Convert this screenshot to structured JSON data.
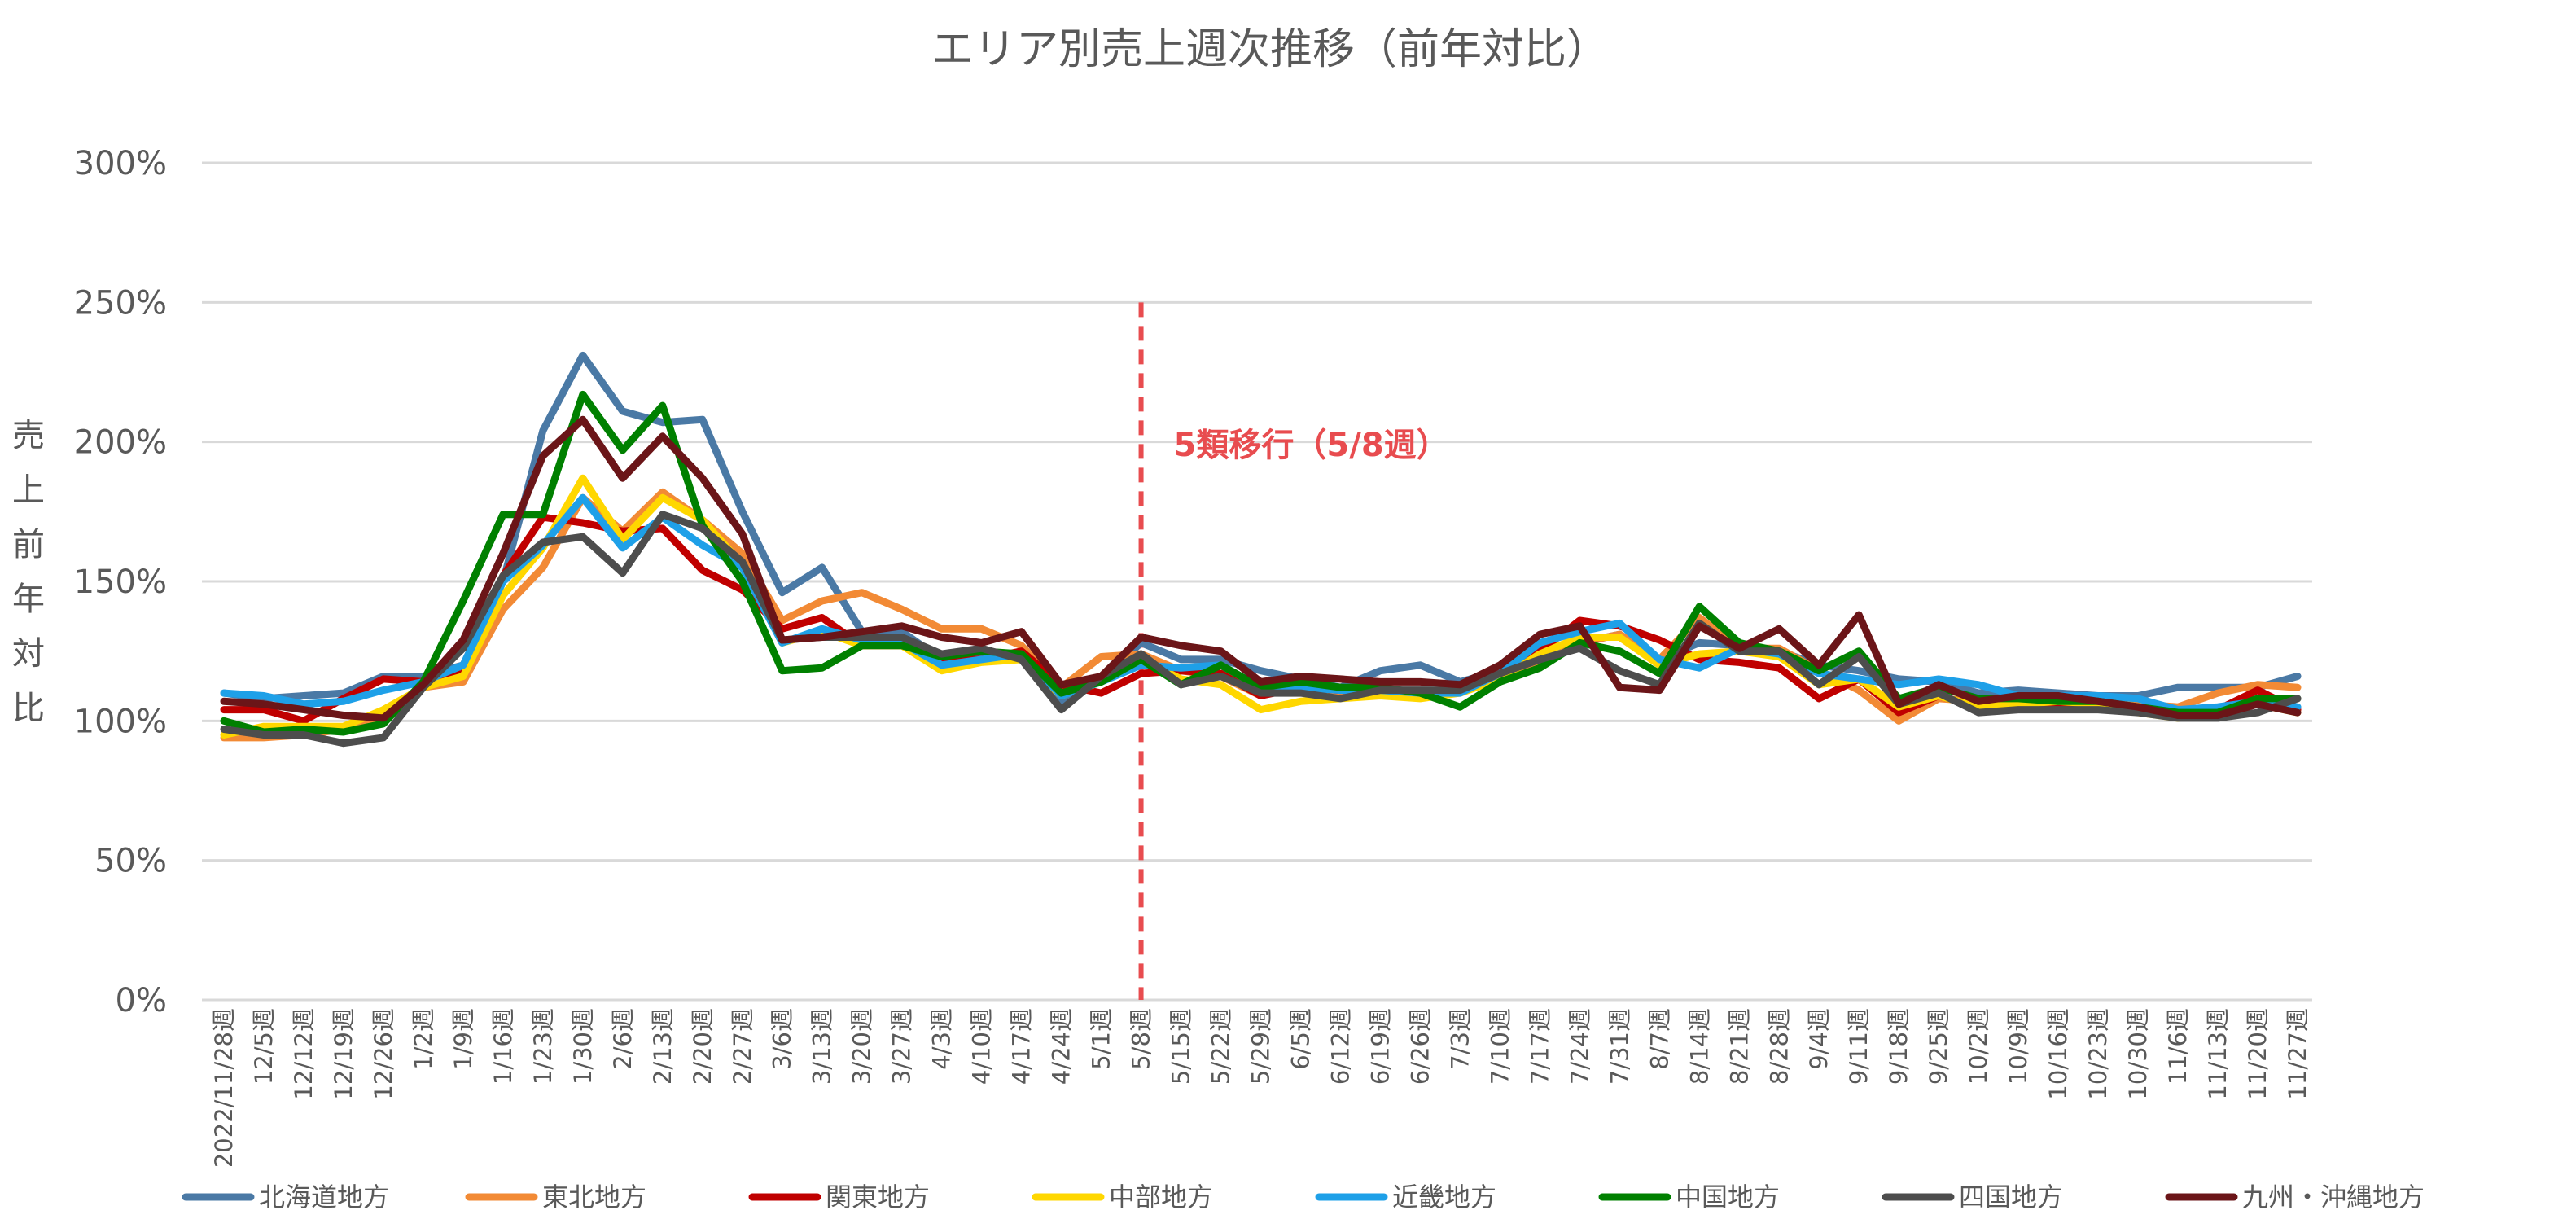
{
  "chart_data": {
    "type": "line",
    "title": "エリア別売上週次推移（前年対比）",
    "ylabel": "売上前年対比",
    "xlabel": "",
    "ylim": [
      0,
      300
    ],
    "yticks": [
      0,
      50,
      100,
      150,
      200,
      250,
      300
    ],
    "ytick_labels": [
      "0%",
      "50%",
      "100%",
      "150%",
      "200%",
      "250%",
      "300%"
    ],
    "grid": true,
    "legend_position": "bottom",
    "categories": [
      "2022/11/28週",
      "12/5週",
      "12/12週",
      "12/19週",
      "12/26週",
      "1/2週",
      "1/9週",
      "1/16週",
      "1/23週",
      "1/30週",
      "2/6週",
      "2/13週",
      "2/20週",
      "2/27週",
      "3/6週",
      "3/13週",
      "3/20週",
      "3/27週",
      "4/3週",
      "4/10週",
      "4/17週",
      "4/24週",
      "5/1週",
      "5/8週",
      "5/15週",
      "5/22週",
      "5/29週",
      "6/5週",
      "6/12週",
      "6/19週",
      "6/26週",
      "7/3週",
      "7/10週",
      "7/17週",
      "7/24週",
      "7/31週",
      "8/7週",
      "8/14週",
      "8/21週",
      "8/28週",
      "9/4週",
      "9/11週",
      "9/18週",
      "9/25週",
      "10/2週",
      "10/9週",
      "10/16週",
      "10/23週",
      "10/30週",
      "11/6週",
      "11/13週",
      "11/20週",
      "11/27週"
    ],
    "annotation": {
      "label": "5類移行（5/8週）",
      "category": "5/8週",
      "color": "#e84c4f"
    },
    "series": [
      {
        "name": "北海道地方",
        "color": "#4a79a5",
        "values": [
          110,
          108,
          109,
          110,
          116,
          116,
          120,
          150,
          204,
          231,
          211,
          207,
          208,
          175,
          146,
          155,
          132,
          132,
          122,
          124,
          124,
          106,
          115,
          128,
          122,
          122,
          118,
          115,
          112,
          118,
          120,
          114,
          118,
          122,
          128,
          131,
          122,
          128,
          127,
          125,
          120,
          118,
          115,
          114,
          110,
          111,
          110,
          109,
          109,
          112,
          112,
          112,
          116
        ]
      },
      {
        "name": "東北地方",
        "color": "#f28a35",
        "values": [
          94,
          94,
          95,
          97,
          102,
          112,
          114,
          140,
          155,
          180,
          168,
          182,
          172,
          160,
          136,
          143,
          146,
          140,
          133,
          133,
          127,
          112,
          123,
          124,
          118,
          116,
          109,
          114,
          110,
          111,
          110,
          112,
          116,
          120,
          128,
          131,
          122,
          137,
          126,
          126,
          118,
          111,
          100,
          108,
          107,
          108,
          108,
          108,
          106,
          105,
          110,
          113,
          112
        ]
      },
      {
        "name": "関東地方",
        "color": "#c00000",
        "values": [
          104,
          104,
          100,
          108,
          115,
          114,
          117,
          152,
          173,
          171,
          168,
          169,
          154,
          147,
          133,
          137,
          127,
          127,
          122,
          122,
          125,
          113,
          110,
          117,
          118,
          117,
          109,
          112,
          111,
          111,
          110,
          112,
          118,
          125,
          136,
          134,
          129,
          122,
          121,
          119,
          108,
          115,
          103,
          109,
          105,
          106,
          106,
          106,
          104,
          102,
          104,
          111,
          104
        ]
      },
      {
        "name": "中部地方",
        "color": "#ffd700",
        "values": [
          95,
          98,
          98,
          98,
          104,
          112,
          116,
          145,
          162,
          187,
          165,
          180,
          172,
          156,
          128,
          132,
          127,
          127,
          118,
          121,
          122,
          109,
          114,
          122,
          115,
          113,
          104,
          107,
          108,
          109,
          108,
          110,
          115,
          124,
          130,
          130,
          120,
          124,
          125,
          123,
          113,
          115,
          105,
          109,
          105,
          106,
          107,
          106,
          103,
          101,
          103,
          106,
          103
        ]
      },
      {
        "name": "近畿地方",
        "color": "#1ea0e8",
        "values": [
          110,
          109,
          106,
          107,
          111,
          114,
          120,
          150,
          163,
          180,
          162,
          173,
          163,
          155,
          128,
          133,
          129,
          128,
          120,
          122,
          124,
          109,
          114,
          120,
          119,
          120,
          112,
          112,
          111,
          111,
          110,
          110,
          117,
          128,
          132,
          135,
          122,
          119,
          126,
          124,
          117,
          115,
          113,
          115,
          113,
          109,
          109,
          109,
          108,
          104,
          105,
          107,
          105
        ]
      },
      {
        "name": "中国地方",
        "color": "#008000",
        "values": [
          100,
          96,
          97,
          96,
          99,
          114,
          143,
          174,
          174,
          217,
          197,
          213,
          170,
          150,
          118,
          119,
          127,
          127,
          123,
          125,
          124,
          110,
          114,
          122,
          113,
          120,
          112,
          114,
          112,
          112,
          110,
          105,
          114,
          119,
          128,
          125,
          117,
          141,
          128,
          125,
          118,
          125,
          108,
          112,
          108,
          108,
          107,
          107,
          105,
          103,
          103,
          108,
          108
        ]
      },
      {
        "name": "四国地方",
        "color": "#4d4d4d",
        "values": [
          97,
          95,
          95,
          92,
          94,
          112,
          126,
          152,
          164,
          166,
          153,
          174,
          169,
          157,
          129,
          130,
          130,
          130,
          124,
          126,
          122,
          104,
          116,
          124,
          113,
          116,
          110,
          110,
          108,
          111,
          111,
          111,
          117,
          122,
          126,
          118,
          113,
          135,
          125,
          125,
          113,
          123,
          106,
          110,
          103,
          104,
          104,
          104,
          103,
          101,
          101,
          103,
          108
        ]
      },
      {
        "name": "九州・沖縄地方",
        "color": "#6b1518",
        "values": [
          107,
          106,
          104,
          102,
          101,
          113,
          129,
          160,
          195,
          208,
          187,
          202,
          187,
          167,
          129,
          130,
          132,
          134,
          130,
          128,
          132,
          113,
          116,
          130,
          127,
          125,
          114,
          116,
          115,
          114,
          114,
          113,
          120,
          131,
          134,
          112,
          111,
          134,
          126,
          133,
          120,
          138,
          106,
          113,
          107,
          109,
          109,
          107,
          105,
          102,
          102,
          106,
          103
        ]
      }
    ]
  }
}
